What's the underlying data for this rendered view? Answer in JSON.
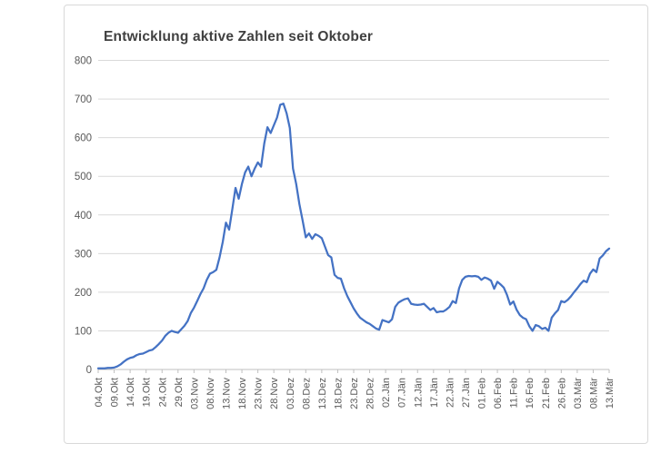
{
  "chart": {
    "title": "Entwicklung aktive Zahlen seit Oktober"
  },
  "chart_data": {
    "type": "line",
    "title": "Entwicklung aktive Zahlen seit Oktober",
    "xlabel": "",
    "ylabel": "",
    "ylim": [
      0,
      800
    ],
    "y_ticks": [
      0,
      100,
      200,
      300,
      400,
      500,
      600,
      700,
      800
    ],
    "grid": "horizontal",
    "legend": "none",
    "line_color": "#4472C4",
    "gridline_color": "#D9D9D9",
    "axis_color": "#BFBFBF",
    "label_color": "#595959",
    "label_every_n_points": 5,
    "tick_labels": [
      "04.Okt",
      "09.Okt",
      "14.Okt",
      "19.Okt",
      "24.Okt",
      "29.Okt",
      "03.Nov",
      "08.Nov",
      "13.Nov",
      "18.Nov",
      "23.Nov",
      "28.Nov",
      "03.Dez",
      "08.Dez",
      "13.Dez",
      "18.Dez",
      "23.Dez",
      "28.Dez",
      "02.Jän",
      "07.Jän",
      "12.Jän",
      "17.Jän",
      "22.Jän",
      "27.Jän",
      "01.Feb",
      "06.Feb",
      "11.Feb",
      "16.Feb",
      "21.Feb",
      "26.Feb",
      "03.Mär",
      "08.Mär",
      "13.Mär"
    ],
    "values": [
      3,
      3,
      3,
      4,
      4,
      5,
      8,
      13,
      20,
      26,
      30,
      32,
      37,
      40,
      41,
      45,
      49,
      51,
      58,
      66,
      75,
      87,
      95,
      100,
      97,
      95,
      104,
      113,
      125,
      146,
      160,
      177,
      195,
      210,
      232,
      248,
      252,
      258,
      290,
      330,
      380,
      362,
      415,
      470,
      442,
      480,
      510,
      525,
      500,
      520,
      536,
      525,
      585,
      627,
      612,
      632,
      652,
      685,
      688,
      663,
      625,
      520,
      480,
      428,
      386,
      342,
      352,
      338,
      350,
      346,
      340,
      318,
      296,
      290,
      245,
      237,
      235,
      210,
      190,
      174,
      158,
      145,
      134,
      128,
      122,
      118,
      112,
      106,
      103,
      128,
      125,
      122,
      130,
      162,
      173,
      178,
      182,
      184,
      170,
      168,
      167,
      168,
      170,
      162,
      154,
      159,
      148,
      150,
      150,
      155,
      162,
      177,
      172,
      210,
      232,
      240,
      242,
      241,
      242,
      240,
      232,
      238,
      235,
      230,
      209,
      227,
      220,
      212,
      193,
      168,
      176,
      155,
      141,
      134,
      130,
      112,
      100,
      115,
      112,
      105,
      108,
      100,
      134,
      145,
      154,
      177,
      174,
      180,
      189,
      200,
      210,
      221,
      230,
      226,
      248,
      259,
      252,
      287,
      295,
      306,
      313
    ]
  }
}
